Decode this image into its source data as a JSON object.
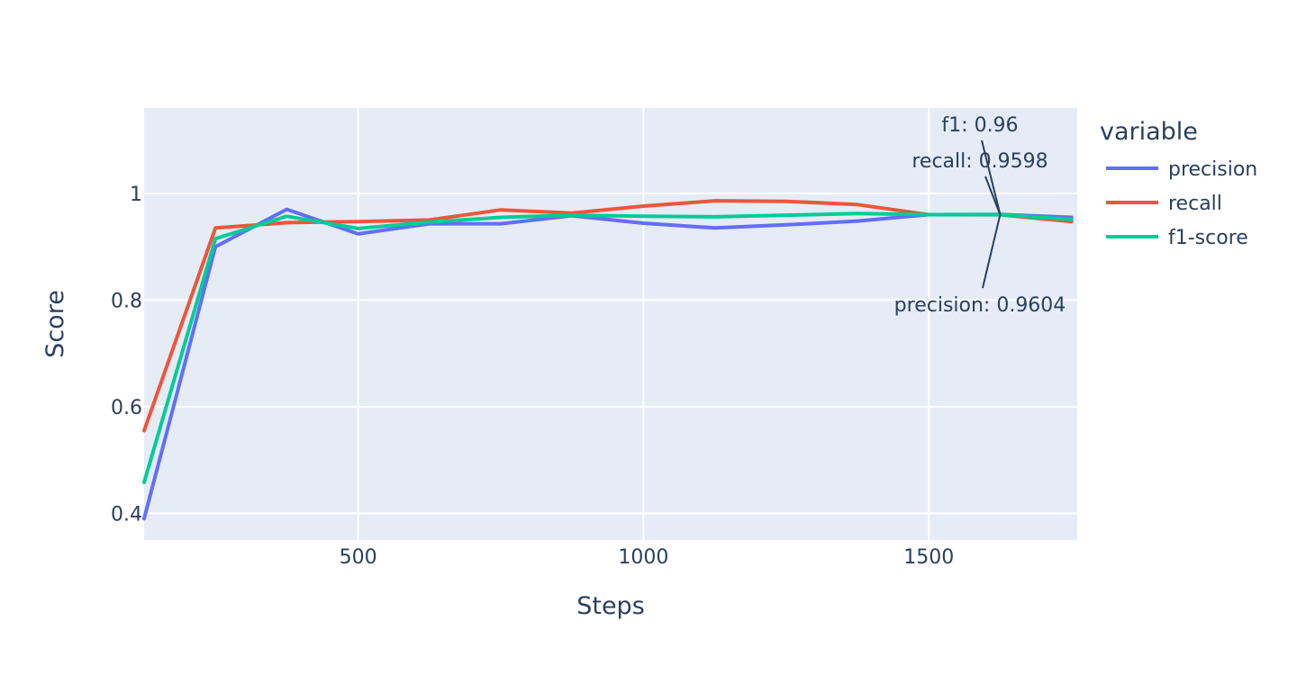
{
  "chart_data": {
    "type": "line",
    "title": "",
    "xlabel": "Steps",
    "ylabel": "Score",
    "xlim": [
      125,
      1760
    ],
    "ylim": [
      0.35,
      1.16
    ],
    "xticks": [
      500,
      1000,
      1500
    ],
    "xtick_labels": [
      "500",
      "1000",
      "1500"
    ],
    "yticks": [
      0.4,
      0.6,
      0.8,
      1.0
    ],
    "ytick_labels": [
      "0.4",
      "0.6",
      "0.8",
      "1"
    ],
    "grid": true,
    "legend": {
      "title": "variable",
      "placement": "right"
    },
    "x": [
      125,
      250,
      375,
      500,
      625,
      750,
      875,
      1000,
      1125,
      1250,
      1375,
      1500,
      1625,
      1750
    ],
    "series": [
      {
        "name": "precision",
        "color": "#636efa",
        "values": [
          0.39,
          0.9,
          0.97,
          0.924,
          0.943,
          0.943,
          0.958,
          0.944,
          0.935,
          0.941,
          0.948,
          0.96,
          0.9604,
          0.955
        ]
      },
      {
        "name": "recall",
        "color": "#ef553b",
        "values": [
          0.555,
          0.935,
          0.945,
          0.947,
          0.95,
          0.969,
          0.963,
          0.976,
          0.986,
          0.985,
          0.979,
          0.96,
          0.9598,
          0.947
        ]
      },
      {
        "name": "f1-score",
        "color": "#00cc96",
        "values": [
          0.458,
          0.915,
          0.957,
          0.934,
          0.946,
          0.955,
          0.959,
          0.957,
          0.956,
          0.959,
          0.962,
          0.96,
          0.96,
          0.951
        ]
      }
    ],
    "annotations": [
      {
        "text": "f1: 0.96",
        "x": 1625,
        "y": 0.96
      },
      {
        "text": "recall: 0.9598",
        "x": 1625,
        "y": 0.9598
      },
      {
        "text": "precision: 0.9604",
        "x": 1625,
        "y": 0.9604
      }
    ]
  }
}
